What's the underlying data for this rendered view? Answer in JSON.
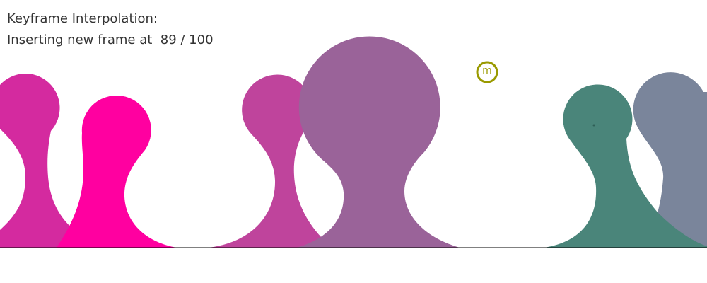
{
  "overlay": {
    "title": "Keyframe Interpolation:",
    "status_prefix": "Inserting new frame at",
    "current_frame": "89",
    "total_frames": "100"
  },
  "cursor": {
    "glyph": "m",
    "color": "#9a9a00"
  },
  "blobs": [
    {
      "name": "blob-magenta-left",
      "color": "#d42a9f"
    },
    {
      "name": "blob-hot-pink",
      "color": "#ff00a0"
    },
    {
      "name": "blob-orchid",
      "color": "#bf449c"
    },
    {
      "name": "blob-purple-large",
      "color": "#9a6399"
    },
    {
      "name": "blob-teal",
      "color": "#4a857a"
    },
    {
      "name": "blob-slate",
      "color": "#7a859b"
    }
  ],
  "ground_color": "#000000"
}
